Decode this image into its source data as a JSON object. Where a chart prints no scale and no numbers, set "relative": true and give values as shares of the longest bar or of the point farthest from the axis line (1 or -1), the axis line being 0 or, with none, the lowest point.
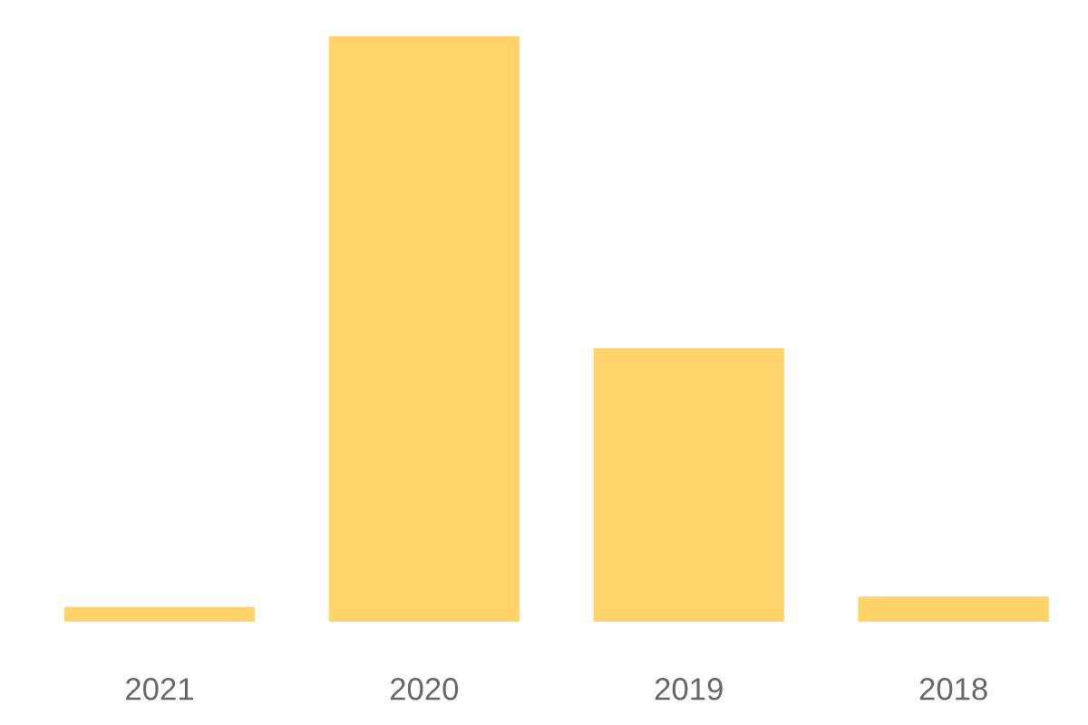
{
  "chart_data": {
    "type": "bar",
    "relative": true,
    "categories": [
      "2021",
      "2020",
      "2019",
      "2018"
    ],
    "values": [
      0.025,
      1,
      0.467,
      0.043
    ],
    "color": "#fed46a",
    "grid": false,
    "legend": false
  }
}
